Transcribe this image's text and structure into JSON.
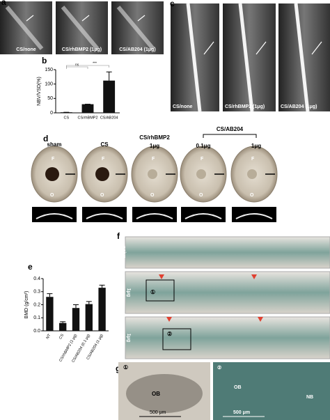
{
  "panel_a": {
    "label": "a",
    "images": [
      "CS/none",
      "CS/rhBMP2 (1μg)",
      "CS/AB204 (1μg)"
    ]
  },
  "panel_c": {
    "label": "c",
    "images": [
      "CS/none",
      "CS/rhBMP2 (1μg)",
      "CS/AB204 (1μg)"
    ]
  },
  "panel_d": {
    "label": "d",
    "groups": [
      "sham",
      "CS",
      "CS/rhBMP2",
      "CS/AB204"
    ],
    "doses": [
      "1μg",
      "0.1μg",
      "1μg"
    ],
    "markers": [
      "F",
      "O"
    ]
  },
  "panel_f": {
    "label": "f",
    "rows": [
      "naive",
      "CS/rhBMP2",
      "1μg",
      "CS/AB204",
      "1μg"
    ],
    "regions": [
      "①",
      "②"
    ]
  },
  "panel_g": {
    "label": "g",
    "regions": [
      "①",
      "②"
    ],
    "tissue": [
      "OB",
      "OB",
      "NB"
    ],
    "scale": [
      "500 μm",
      "500 μm"
    ]
  },
  "chart_data": [
    {
      "type": "bar",
      "panel_label": "b",
      "y_label": "NBV/VSD(%)",
      "categories": [
        "CS",
        "CS/rhBMP2",
        "CS/AB204"
      ],
      "values": [
        2,
        30,
        112
      ],
      "errors": [
        0,
        0,
        30
      ],
      "color": "#111111",
      "ylim": [
        0,
        150
      ],
      "yticks": [
        0,
        50,
        100,
        150
      ],
      "annotations": [
        "ns",
        "***"
      ]
    },
    {
      "type": "bar",
      "panel_label": "e",
      "y_label": "BMD (g/cm²)",
      "categories": [
        "NT",
        "CS",
        "CS/rhBMP2 (1 μg)",
        "CS/AB204 (0.1 μg)",
        "CS/AB204 (1 μg)"
      ],
      "values": [
        0.26,
        0.06,
        0.175,
        0.205,
        0.33
      ],
      "errors": [
        0.025,
        0.01,
        0.025,
        0.02,
        0.02
      ],
      "color": "#111111",
      "ylim": [
        0,
        0.4
      ],
      "yticks": [
        {
          "value": 0,
          "label": "0.0"
        },
        0.1,
        0.2,
        0.3,
        0.4
      ]
    }
  ]
}
